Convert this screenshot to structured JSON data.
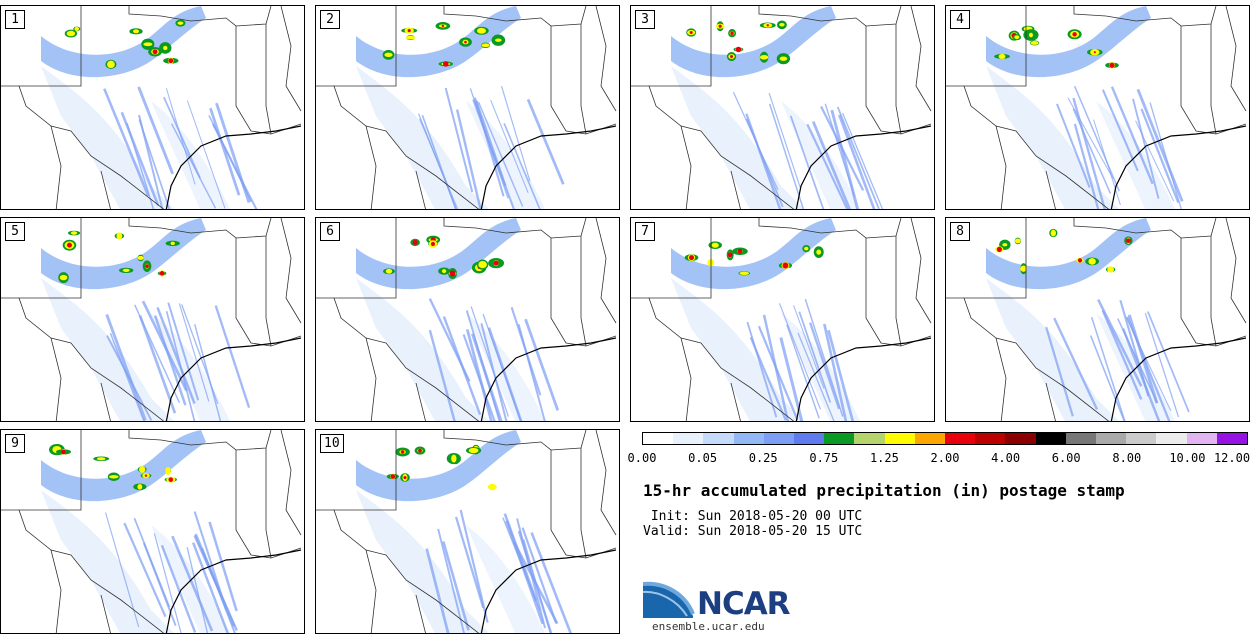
{
  "panels": [
    {
      "label": "1"
    },
    {
      "label": "2"
    },
    {
      "label": "3"
    },
    {
      "label": "4"
    },
    {
      "label": "5"
    },
    {
      "label": "6"
    },
    {
      "label": "7"
    },
    {
      "label": "8"
    },
    {
      "label": "9"
    },
    {
      "label": "10"
    }
  ],
  "colorbar": {
    "colors": [
      "#ffffff",
      "#e8f1fc",
      "#c6daf9",
      "#93b8f6",
      "#7c9ef4",
      "#5f7bee",
      "#0a9a23",
      "#b6d46c",
      "#fffb00",
      "#fba700",
      "#e8000d",
      "#bb0000",
      "#8a0000",
      "#000000",
      "#777777",
      "#a9a9a9",
      "#cbcbcb",
      "#ececec",
      "#e3b4f2",
      "#9514e4"
    ],
    "tick_labels": [
      "0.00",
      "0.05",
      "0.25",
      "0.75",
      "1.25",
      "2.00",
      "4.00",
      "6.00",
      "8.00",
      "10.00",
      "12.00"
    ]
  },
  "title": "15-hr accumulated precipitation (in) postage stamp",
  "init": " Init: Sun 2018-05-20 00 UTC",
  "valid": "Valid: Sun 2018-05-20 15 UTC",
  "logo": {
    "text": "NCAR",
    "icon": "ncar-swoosh-logo",
    "color": "#1c3f82"
  },
  "footer": "ensemble.ucar.edu"
}
